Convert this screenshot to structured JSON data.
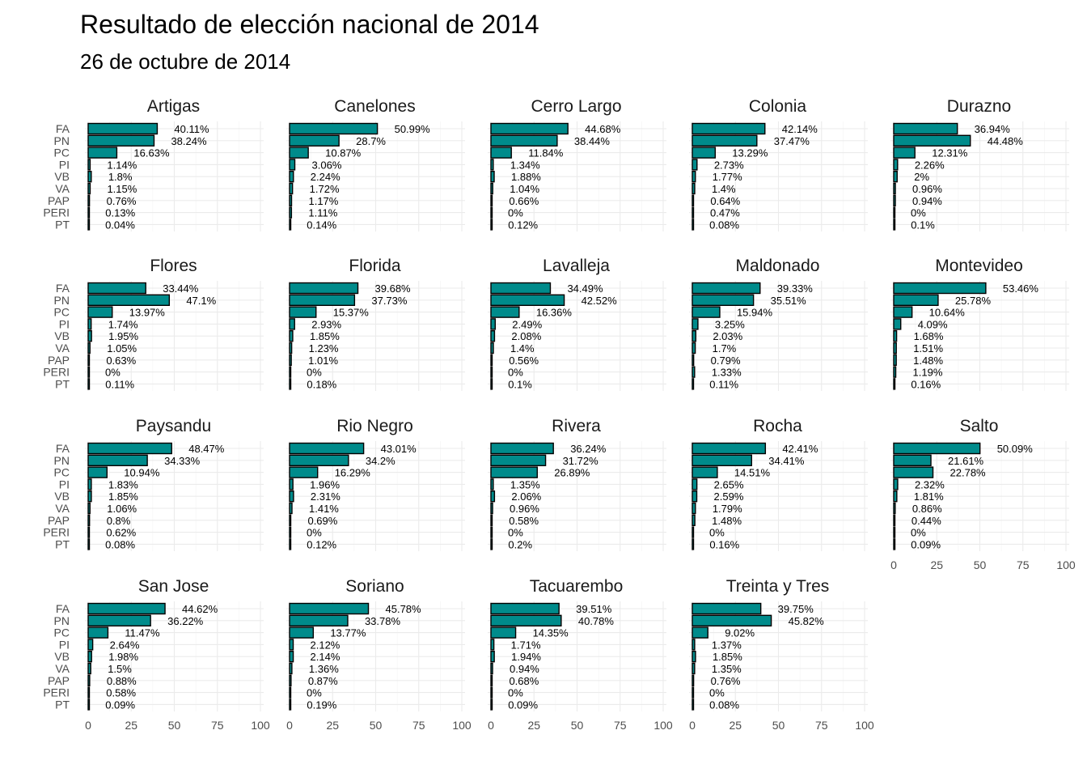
{
  "title": "Resultado de elección nacional de 2014",
  "subtitle": "26 de octubre de 2014",
  "chart_data": {
    "type": "bar",
    "orientation": "horizontal",
    "facet": "departamento",
    "categories": [
      "FA",
      "PN",
      "PC",
      "PI",
      "VB",
      "VA",
      "PAP",
      "PERI",
      "PT"
    ],
    "xlim": [
      0,
      100
    ],
    "x_ticks": [
      0,
      25,
      50,
      75,
      100
    ],
    "grid": true,
    "bar_color": "#008B8B",
    "bar_outline": "#000000",
    "label_suffix": "%",
    "panels": [
      {
        "name": "Artigas",
        "values": [
          40.11,
          38.24,
          16.63,
          1.14,
          1.8,
          1.15,
          0.76,
          0.13,
          0.04
        ]
      },
      {
        "name": "Canelones",
        "values": [
          50.99,
          28.7,
          10.87,
          3.06,
          2.24,
          1.72,
          1.17,
          1.11,
          0.14
        ]
      },
      {
        "name": "Cerro Largo",
        "values": [
          44.68,
          38.44,
          11.84,
          1.34,
          1.88,
          1.04,
          0.66,
          0,
          0.12
        ]
      },
      {
        "name": "Colonia",
        "values": [
          42.14,
          37.47,
          13.29,
          2.73,
          1.77,
          1.4,
          0.64,
          0.47,
          0.08
        ]
      },
      {
        "name": "Durazno",
        "values": [
          36.94,
          44.48,
          12.31,
          2.26,
          2,
          0.96,
          0.94,
          0,
          0.1
        ]
      },
      {
        "name": "Flores",
        "values": [
          33.44,
          47.1,
          13.97,
          1.74,
          1.95,
          1.05,
          0.63,
          0,
          0.11
        ]
      },
      {
        "name": "Florida",
        "values": [
          39.68,
          37.73,
          15.37,
          2.93,
          1.85,
          1.23,
          1.01,
          0,
          0.18
        ]
      },
      {
        "name": "Lavalleja",
        "values": [
          34.49,
          42.52,
          16.36,
          2.49,
          2.08,
          1.4,
          0.56,
          0,
          0.1
        ]
      },
      {
        "name": "Maldonado",
        "values": [
          39.33,
          35.51,
          15.94,
          3.25,
          2.03,
          1.7,
          0.79,
          1.33,
          0.11
        ]
      },
      {
        "name": "Montevideo",
        "values": [
          53.46,
          25.78,
          10.64,
          4.09,
          1.68,
          1.51,
          1.48,
          1.19,
          0.16
        ]
      },
      {
        "name": "Paysandu",
        "values": [
          48.47,
          34.33,
          10.94,
          1.83,
          1.85,
          1.06,
          0.8,
          0.62,
          0.08
        ]
      },
      {
        "name": "Rio Negro",
        "values": [
          43.01,
          34.2,
          16.29,
          1.96,
          2.31,
          1.41,
          0.69,
          0,
          0.12
        ]
      },
      {
        "name": "Rivera",
        "values": [
          36.24,
          31.72,
          26.89,
          1.35,
          2.06,
          0.96,
          0.58,
          0,
          0.2
        ]
      },
      {
        "name": "Rocha",
        "values": [
          42.41,
          34.41,
          14.51,
          2.65,
          2.59,
          1.79,
          1.48,
          0,
          0.16
        ]
      },
      {
        "name": "Salto",
        "values": [
          50.09,
          21.61,
          22.78,
          2.32,
          1.81,
          0.86,
          0.44,
          0,
          0.09
        ]
      },
      {
        "name": "San Jose",
        "values": [
          44.62,
          36.22,
          11.47,
          2.64,
          1.98,
          1.5,
          0.88,
          0.58,
          0.09
        ]
      },
      {
        "name": "Soriano",
        "values": [
          45.78,
          33.78,
          13.77,
          2.12,
          2.14,
          1.36,
          0.87,
          0,
          0.19
        ]
      },
      {
        "name": "Tacuarembo",
        "values": [
          39.51,
          40.78,
          14.35,
          1.71,
          1.94,
          0.94,
          0.68,
          0,
          0.09
        ]
      },
      {
        "name": "Treinta y Tres",
        "values": [
          39.75,
          45.82,
          9.02,
          1.37,
          1.85,
          1.35,
          0.76,
          0,
          0.08
        ]
      }
    ]
  }
}
